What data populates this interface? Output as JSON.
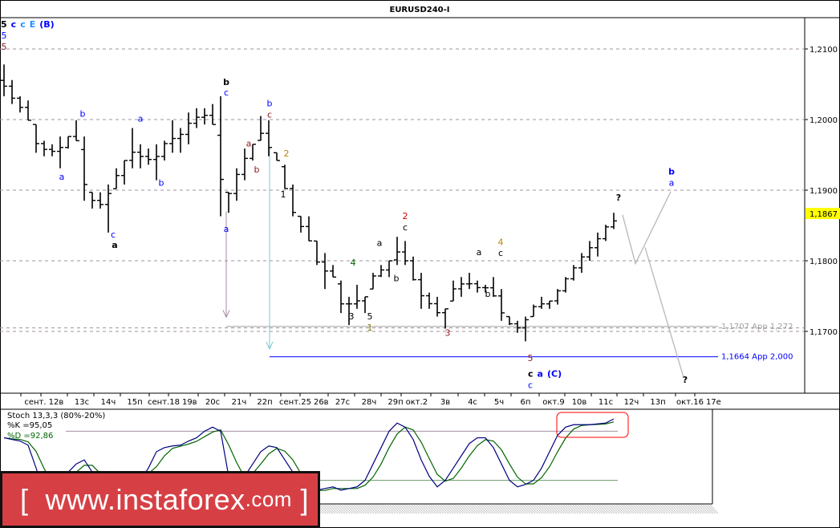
{
  "title": "EURUSD240-I",
  "chart_data": {
    "type": "ohlc",
    "symbol": "EURUSD",
    "timeframe": "H4",
    "ylim": [
      1.1615,
      1.2145
    ],
    "y_ticks": [
      "1,2100",
      "1,2000",
      "1,1900",
      "1,1800",
      "1,1700"
    ],
    "y_tick_values": [
      1.21,
      1.2,
      1.19,
      1.18,
      1.17
    ],
    "current_price": "1,1867",
    "current_price_value": 1.1867,
    "current_price_color": "#ffff00",
    "grid": "dashed horizontal",
    "x_ticks": [
      "сент.",
      "12в",
      "13с",
      "14ч",
      "15п",
      "сент.18",
      "19в",
      "20с",
      "21ч",
      "22п",
      "сент.25",
      "26в",
      "27с",
      "28ч",
      "29п",
      "окт.2",
      "3в",
      "4с",
      "5ч",
      "6п",
      "окт.9",
      "10в",
      "11с",
      "12ч",
      "13п",
      "окт.16",
      "17е"
    ],
    "bars_high_low": [
      [
        1.2078,
        1.2033
      ],
      [
        1.2056,
        1.2022
      ],
      [
        1.2033,
        1.201
      ],
      [
        1.2027,
        1.1999
      ],
      [
        1.1993,
        1.1953
      ],
      [
        1.197,
        1.1948
      ],
      [
        1.1965,
        1.1948
      ],
      [
        1.1976,
        1.1931
      ],
      [
        1.1976,
        1.1959
      ],
      [
        1.1999,
        1.197
      ],
      [
        1.1976,
        1.1885
      ],
      [
        1.1897,
        1.1874
      ],
      [
        1.1897,
        1.1874
      ],
      [
        1.1908,
        1.184
      ],
      [
        1.1931,
        1.1902
      ],
      [
        1.1942,
        1.1908
      ],
      [
        1.1988,
        1.1931
      ],
      [
        1.1965,
        1.1931
      ],
      [
        1.1959,
        1.1936
      ],
      [
        1.1965,
        1.1914
      ],
      [
        1.197,
        1.1942
      ],
      [
        1.1999,
        1.1953
      ],
      [
        1.1988,
        1.1953
      ],
      [
        1.201,
        1.1965
      ],
      [
        1.2016,
        1.1988
      ],
      [
        1.2016,
        1.1993
      ],
      [
        1.2022,
        1.1993
      ],
      [
        1.2033,
        1.1863
      ],
      [
        1.1897,
        1.1868
      ],
      [
        1.1931,
        1.1885
      ],
      [
        1.1959,
        1.1914
      ],
      [
        1.1965,
        1.1942
      ],
      [
        1.2005,
        1.197
      ],
      [
        1.1999,
        1.1948
      ],
      [
        1.1953,
        1.1942
      ],
      [
        1.1936,
        1.1902
      ],
      [
        1.1908,
        1.1863
      ],
      [
        1.1863,
        1.184
      ],
      [
        1.1863,
        1.1828
      ],
      [
        1.1828,
        1.1794
      ],
      [
        1.1811,
        1.176
      ],
      [
        1.1794,
        1.1777
      ],
      [
        1.1772,
        1.1726
      ],
      [
        1.1749,
        1.1709
      ],
      [
        1.1766,
        1.1732
      ],
      [
        1.1749,
        1.1726
      ],
      [
        1.1783,
        1.176
      ],
      [
        1.1794,
        1.1777
      ],
      [
        1.18,
        1.1777
      ],
      [
        1.1834,
        1.1794
      ],
      [
        1.1828,
        1.1794
      ],
      [
        1.1806,
        1.1772
      ],
      [
        1.1783,
        1.1732
      ],
      [
        1.1755,
        1.1732
      ],
      [
        1.1749,
        1.1721
      ],
      [
        1.1732,
        1.1704
      ],
      [
        1.1772,
        1.1743
      ],
      [
        1.1777,
        1.1749
      ],
      [
        1.1783,
        1.176
      ],
      [
        1.1772,
        1.1755
      ],
      [
        1.1766,
        1.1755
      ],
      [
        1.1777,
        1.1749
      ],
      [
        1.176,
        1.1715
      ],
      [
        1.1721,
        1.1709
      ],
      [
        1.1715,
        1.1698
      ],
      [
        1.1721,
        1.1686
      ],
      [
        1.1738,
        1.1721
      ],
      [
        1.1749,
        1.1732
      ],
      [
        1.1743,
        1.1732
      ],
      [
        1.176,
        1.1738
      ],
      [
        1.1777,
        1.1755
      ],
      [
        1.1794,
        1.1772
      ],
      [
        1.1811,
        1.1783
      ],
      [
        1.1828,
        1.18
      ],
      [
        1.184,
        1.1806
      ],
      [
        1.1851,
        1.1828
      ],
      [
        1.1868,
        1.1845
      ]
    ],
    "levels": [
      {
        "label": "1,1707 App 1,272",
        "value": 1.1707,
        "color": "#a0a0a0",
        "from_bar": 27.7
      },
      {
        "label": "1,1664 App 2,000",
        "value": 1.1664,
        "color": "#0000ff",
        "from_bar": 33.1
      }
    ],
    "arrows": [
      {
        "bar": 27.7,
        "from": 1.187,
        "to": 1.172,
        "color": "#a08ca0"
      },
      {
        "bar": 33.1,
        "from": 1.196,
        "to": 1.1675,
        "color": "#7ec8d0"
      }
    ],
    "forecast_paths": [
      [
        [
          77.1,
          1.1865
        ],
        [
          78.7,
          1.1796
        ],
        [
          83.1,
          1.1898
        ]
      ],
      [
        [
          79.9,
          1.1819
        ],
        [
          84.7,
          1.1635
        ]
      ]
    ],
    "wave_labels": [
      {
        "t": "5",
        "bar": 0,
        "p": 1.2133,
        "c": "#0000ff",
        "b": false
      },
      {
        "t": "5",
        "bar": 0,
        "p": 1.2119,
        "c": "#8b1a1a",
        "b": false
      },
      {
        "t": "a",
        "bar": 7.2,
        "p": 1.1915,
        "c": "#0000ff",
        "b": false
      },
      {
        "t": "b",
        "bar": 9.8,
        "p": 1.2004,
        "c": "#0000ff",
        "b": false
      },
      {
        "t": "c",
        "bar": 13.6,
        "p": 1.1833,
        "c": "#0000ff",
        "b": false
      },
      {
        "t": "a",
        "bar": 13.8,
        "p": 1.1818,
        "c": "#000000",
        "b": true
      },
      {
        "t": "a",
        "bar": 17,
        "p": 1.1997,
        "c": "#0000ff",
        "b": false
      },
      {
        "t": "b",
        "bar": 19.6,
        "p": 1.1906,
        "c": "#0000ff",
        "b": false
      },
      {
        "t": "b",
        "bar": 27.7,
        "p": 1.2049,
        "c": "#000000",
        "b": true
      },
      {
        "t": "c",
        "bar": 27.7,
        "p": 1.2034,
        "c": "#0000ff",
        "b": false
      },
      {
        "t": "a",
        "bar": 27.7,
        "p": 1.1841,
        "c": "#0000ff",
        "b": false
      },
      {
        "t": "a",
        "bar": 30.5,
        "p": 1.1962,
        "c": "#8b1a1a",
        "b": false
      },
      {
        "t": "b",
        "bar": 31.5,
        "p": 1.1925,
        "c": "#8b1a1a",
        "b": false
      },
      {
        "t": "b",
        "bar": 33.1,
        "p": 1.2019,
        "c": "#0000ff",
        "b": false
      },
      {
        "t": "c",
        "bar": 33.1,
        "p": 1.2006,
        "c": "#8b1a1a",
        "b": false
      },
      {
        "t": "2",
        "bar": 35.2,
        "p": 1.1948,
        "c": "#b8860b",
        "b": false
      },
      {
        "t": "1",
        "bar": 34.8,
        "p": 1.189,
        "c": "#000000",
        "b": false
      },
      {
        "t": "4",
        "bar": 43.5,
        "p": 1.1793,
        "c": "#006400",
        "b": false
      },
      {
        "t": "3",
        "bar": 43.3,
        "p": 1.1717,
        "c": "#000000",
        "b": false
      },
      {
        "t": "5",
        "bar": 45.6,
        "p": 1.1717,
        "c": "#000000",
        "b": false
      },
      {
        "t": "1",
        "bar": 45.6,
        "p": 1.1706,
        "c": "#808000",
        "b": false
      },
      {
        "t": "a",
        "bar": 46.8,
        "p": 1.1821,
        "c": "#000000",
        "b": false
      },
      {
        "t": "b",
        "bar": 48.9,
        "p": 1.1771,
        "c": "#000000",
        "b": false
      },
      {
        "t": "2",
        "bar": 50,
        "p": 1.1859,
        "c": "#cc0000",
        "b": false
      },
      {
        "t": "c",
        "bar": 50,
        "p": 1.1848,
        "c": "#000000",
        "b": false
      },
      {
        "t": "3",
        "bar": 55.3,
        "p": 1.1694,
        "c": "#8b1a1a",
        "b": false
      },
      {
        "t": "a",
        "bar": 59.2,
        "p": 1.1808,
        "c": "#000000",
        "b": false
      },
      {
        "t": "b",
        "bar": 60.3,
        "p": 1.1749,
        "c": "#000000",
        "b": false
      },
      {
        "t": "4",
        "bar": 61.9,
        "p": 1.1822,
        "c": "#b8860b",
        "b": false
      },
      {
        "t": "c",
        "bar": 61.9,
        "p": 1.1807,
        "c": "#000000",
        "b": false
      },
      {
        "t": "5",
        "bar": 65.6,
        "p": 1.1658,
        "c": "#8b1a1a",
        "b": false
      },
      {
        "t": "c",
        "bar": 65.6,
        "p": 1.1646,
        "c": "#0000ff",
        "b": false
      },
      {
        "t": "?",
        "bar": 76.6,
        "p": 1.1885,
        "c": "#000000",
        "b": true
      },
      {
        "t": "b",
        "bar": 83.2,
        "p": 1.1922,
        "c": "#0000ff",
        "b": true
      },
      {
        "t": "a",
        "bar": 83.2,
        "p": 1.1906,
        "c": "#0000ff",
        "b": false
      },
      {
        "t": "?",
        "bar": 84.9,
        "p": 1.1627,
        "c": "#000000",
        "b": true
      }
    ],
    "label_groups": [
      {
        "bar": 0,
        "p": 1.2148,
        "parts": [
          {
            "t": "5",
            "c": "#000000"
          },
          {
            "t": "c",
            "c": "#0000ff"
          },
          {
            "t": "c",
            "c": "#1e90ff"
          },
          {
            "t": "E",
            "c": "#1e90ff"
          },
          {
            "t": "(B)",
            "c": "#0000ff"
          }
        ]
      },
      {
        "bar": 65.7,
        "p": 1.1636,
        "parts": [
          {
            "t": "c",
            "c": "#000000"
          },
          {
            "t": "a",
            "c": "#0000ff"
          },
          {
            "t": "(C)",
            "c": "#0000ff"
          }
        ]
      }
    ]
  },
  "stochastic": {
    "title": "Stoch 13,3,3 (80%-20%)",
    "k_label": "%K =95,05",
    "d_label": "%D =92,86",
    "k_color": "#000080",
    "d_color": "#006400",
    "levels": [
      80,
      20
    ],
    "highlight_color": "#ff0000",
    "k_values": [
      72,
      70,
      68,
      63,
      35,
      5,
      8,
      20,
      30,
      40,
      45,
      30,
      10,
      8,
      15,
      30,
      30,
      20,
      35,
      55,
      60,
      62,
      63,
      68,
      72,
      80,
      85,
      80,
      25,
      20,
      25,
      40,
      55,
      62,
      60,
      45,
      30,
      10,
      5,
      8,
      10,
      12,
      8,
      10,
      12,
      20,
      40,
      60,
      80,
      90,
      85,
      70,
      45,
      25,
      12,
      20,
      35,
      50,
      65,
      72,
      72,
      60,
      40,
      20,
      12,
      15,
      20,
      35,
      55,
      75,
      85,
      88,
      88,
      88,
      89,
      90,
      95
    ]
  },
  "watermark": {
    "bracket_open": "[",
    "text": "www.instaforex",
    "suffix": ".com",
    "bracket_close": "]"
  }
}
